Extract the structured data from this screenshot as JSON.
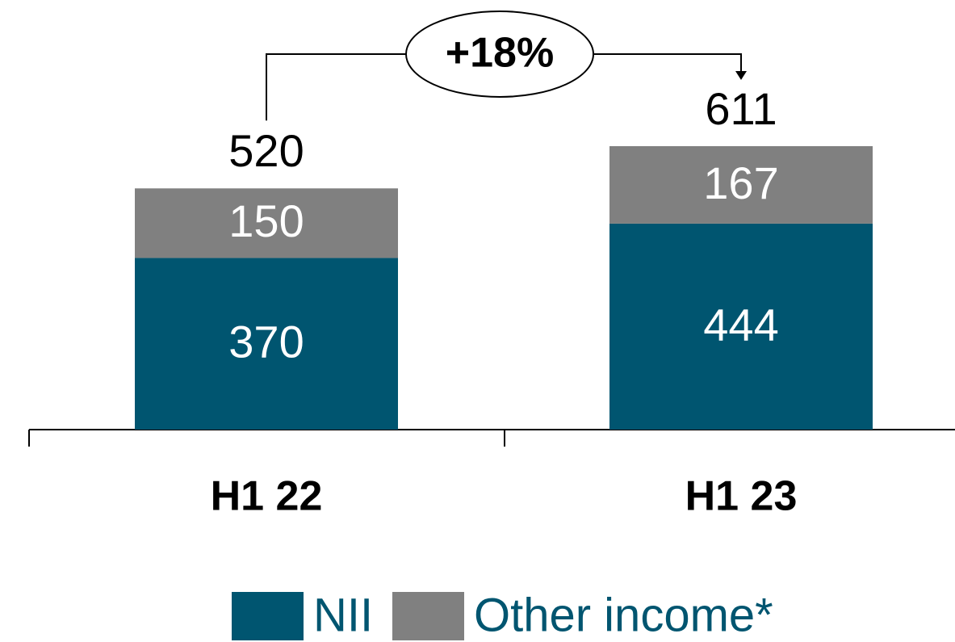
{
  "chart_data": {
    "type": "stacked_bar",
    "categories": [
      "H1 22",
      "H1 23"
    ],
    "series": [
      {
        "name": "NII",
        "color": "#005570",
        "values": [
          370,
          444
        ]
      },
      {
        "name": "Other income*",
        "color": "#808080",
        "values": [
          150,
          167
        ]
      }
    ],
    "totals": [
      520,
      611
    ],
    "annotation": "+18%"
  }
}
